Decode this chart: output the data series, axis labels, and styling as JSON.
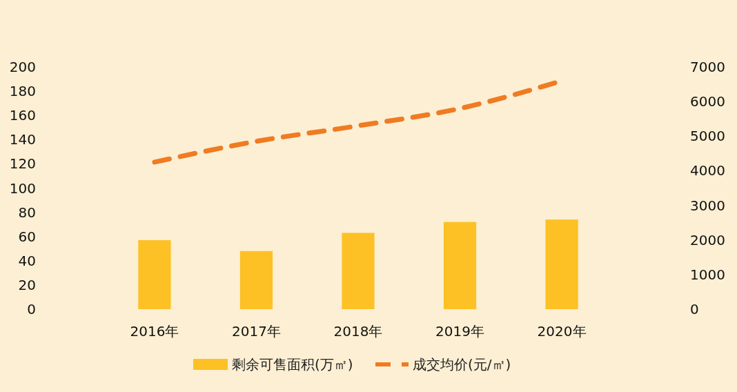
{
  "chart_data": {
    "type": "bar",
    "categories": [
      "2016年",
      "2017年",
      "2018年",
      "2019年",
      "2020年"
    ],
    "series": [
      {
        "name": "剩余可售面积(万㎡)",
        "type": "bar",
        "color": "#fdc125",
        "values": [
          57,
          48,
          63,
          72,
          74
        ]
      },
      {
        "name": "成交均价(元/㎡)",
        "type": "line",
        "axis": "y2",
        "color": "#ef7b22",
        "line_style": "dashed",
        "values": [
          4250,
          4850,
          5300,
          5800,
          6600
        ]
      }
    ],
    "ylim": [
      0,
      200
    ],
    "yticks": [
      0,
      20,
      40,
      60,
      80,
      100,
      120,
      140,
      160,
      180,
      200
    ],
    "y2lim": [
      0,
      7000
    ],
    "y2ticks": [
      0,
      1000,
      2000,
      3000,
      4000,
      5000,
      6000,
      7000
    ],
    "legend": "bottom"
  }
}
